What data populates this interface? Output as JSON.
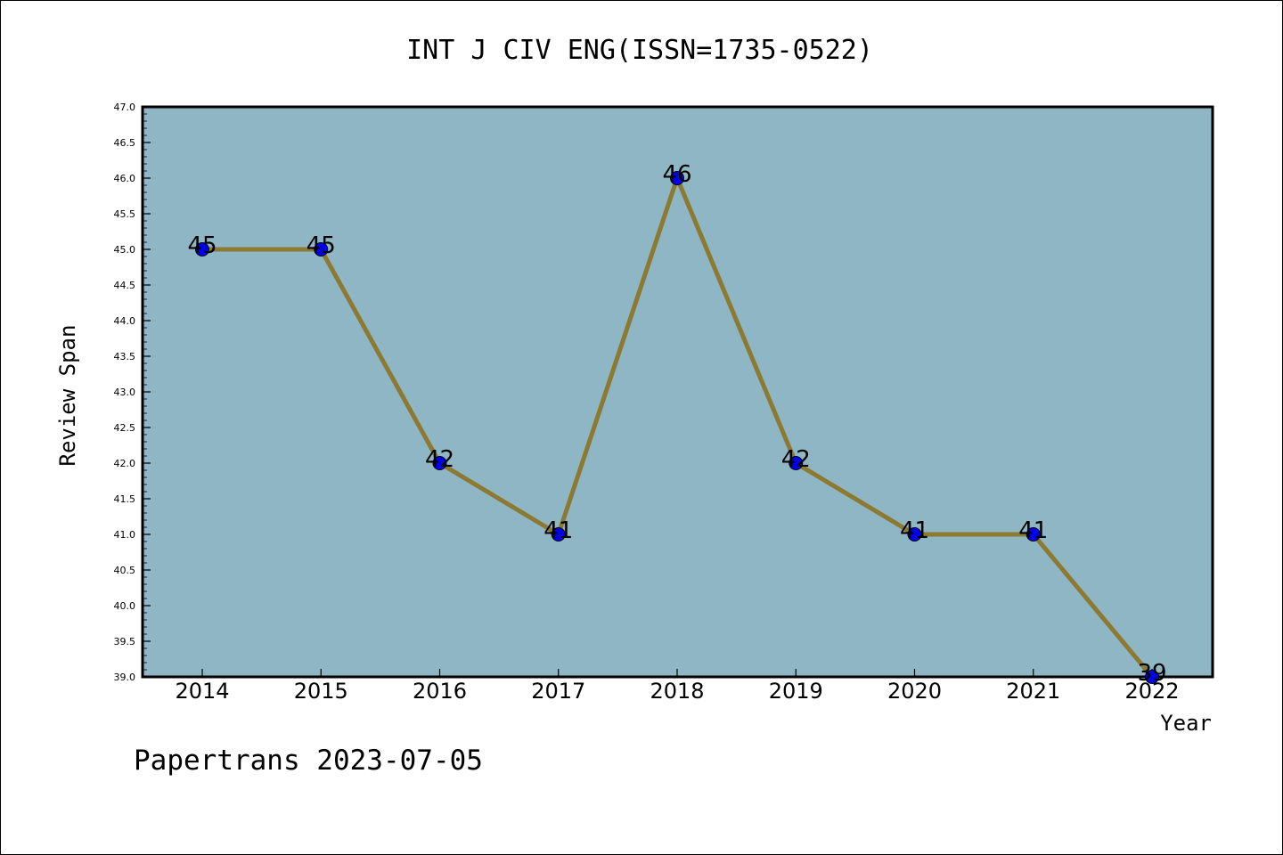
{
  "chart_data": {
    "type": "line",
    "title": "INT J CIV ENG(ISSN=1735-0522)",
    "xlabel": "Year",
    "ylabel": "Review Span",
    "categories": [
      "2014",
      "2015",
      "2016",
      "2017",
      "2018",
      "2019",
      "2020",
      "2021",
      "2022"
    ],
    "series": [
      {
        "values": [
          45,
          45,
          42,
          41,
          46,
          42,
          41,
          41,
          39
        ]
      }
    ],
    "data_labels": [
      "45",
      "45",
      "42",
      "41",
      "46",
      "42",
      "41",
      "41",
      "39"
    ],
    "ylim": [
      39.0,
      47.0
    ],
    "yticks": [
      "39.0",
      "39.5",
      "40.0",
      "40.5",
      "41.0",
      "41.5",
      "42.0",
      "42.5",
      "43.0",
      "43.5",
      "44.0",
      "44.5",
      "45.0",
      "45.5",
      "46.0",
      "46.5",
      "47.0"
    ],
    "grid": false,
    "legend": "none",
    "colors": {
      "plot_background": "#8fb6c4",
      "line": "#8c7a33",
      "marker": "#0000ee"
    }
  },
  "footer": "Papertrans 2023-07-05"
}
